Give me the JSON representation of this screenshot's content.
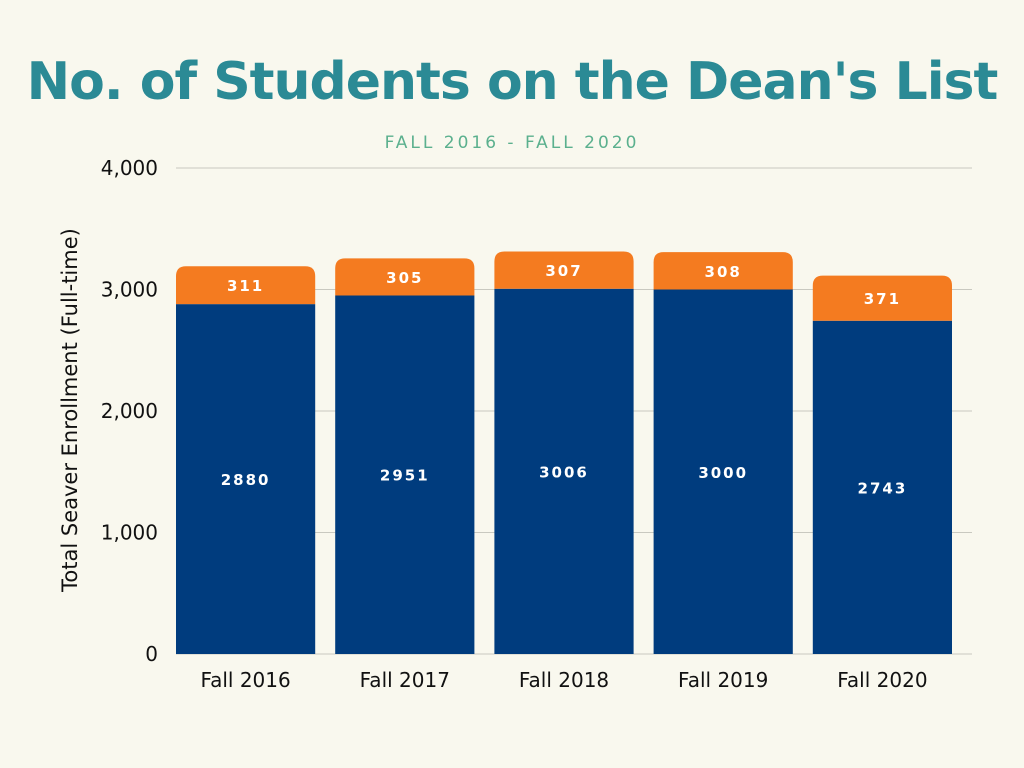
{
  "chart_data": {
    "type": "bar",
    "stacked": true,
    "title": "No. of Students on the Dean's List",
    "subtitle": "FALL 2016 - FALL 2020",
    "xlabel": "",
    "ylabel": "Total Seaver Enrollment (Full-time)",
    "ylim": [
      0,
      4000
    ],
    "yticks": [
      0,
      1000,
      2000,
      3000,
      4000
    ],
    "ytick_labels": [
      "0",
      "1,000",
      "2,000",
      "3,000",
      "4,000"
    ],
    "grid": true,
    "legend": "none",
    "categories": [
      "Fall 2016",
      "Fall 2017",
      "Fall 2018",
      "Fall 2019",
      "Fall 2020"
    ],
    "series": [
      {
        "values": [
          2880,
          2951,
          3006,
          3000,
          2743
        ],
        "color": "#003c7e"
      },
      {
        "values": [
          311,
          305,
          307,
          308,
          371
        ],
        "color": "#f47b20"
      }
    ]
  }
}
